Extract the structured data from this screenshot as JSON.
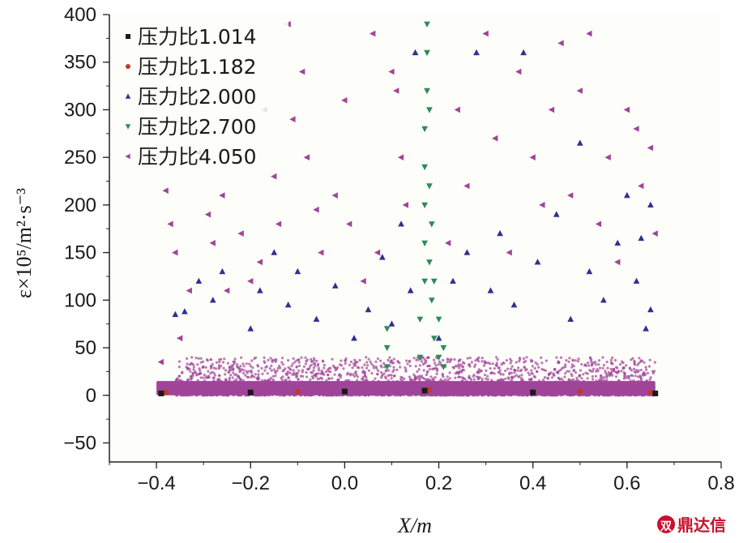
{
  "chart_data": {
    "type": "scatter",
    "xlabel": "X/m",
    "ylabel": "ε×10⁵/m²·s⁻³",
    "xlim": [
      -0.5,
      0.8
    ],
    "ylim": [
      -70,
      400
    ],
    "x_ticks": [
      -0.4,
      -0.2,
      0.0,
      0.2,
      0.4,
      0.6,
      0.8
    ],
    "x_tick_labels": [
      "−0.4",
      "−0.2",
      "0.0",
      "0.2",
      "0.4",
      "0.6",
      "0.8"
    ],
    "y_ticks": [
      -50,
      0,
      50,
      100,
      150,
      200,
      250,
      300,
      350,
      400
    ],
    "y_tick_labels": [
      "−50",
      "0",
      "50",
      "100",
      "150",
      "200",
      "250",
      "300",
      "350",
      "400"
    ],
    "legend_position": "top-left",
    "series": [
      {
        "name": "压力比1.014",
        "marker": "square",
        "color": "#1a1a1a",
        "points": [
          [
            -0.39,
            2
          ],
          [
            -0.2,
            3
          ],
          [
            0.0,
            4
          ],
          [
            0.17,
            5
          ],
          [
            0.4,
            3
          ],
          [
            0.66,
            2
          ]
        ]
      },
      {
        "name": "压力比1.182",
        "marker": "circle",
        "color": "#c0392b",
        "points": [
          [
            -0.38,
            3
          ],
          [
            -0.1,
            4
          ],
          [
            0.18,
            6
          ],
          [
            0.5,
            4
          ],
          [
            0.65,
            3
          ]
        ]
      },
      {
        "name": "压力比2.000",
        "marker": "triangle-up",
        "color": "#2e3192",
        "points": [
          [
            -0.36,
            85
          ],
          [
            -0.34,
            88
          ],
          [
            -0.31,
            120
          ],
          [
            -0.28,
            100
          ],
          [
            -0.26,
            130
          ],
          [
            -0.2,
            70
          ],
          [
            -0.18,
            110
          ],
          [
            -0.15,
            150
          ],
          [
            -0.12,
            95
          ],
          [
            -0.1,
            130
          ],
          [
            -0.06,
            80
          ],
          [
            -0.02,
            115
          ],
          [
            0.02,
            60
          ],
          [
            0.05,
            90
          ],
          [
            0.08,
            145
          ],
          [
            0.1,
            75
          ],
          [
            0.12,
            180
          ],
          [
            0.14,
            110
          ],
          [
            0.15,
            360
          ],
          [
            0.2,
            60
          ],
          [
            0.23,
            120
          ],
          [
            0.26,
            150
          ],
          [
            0.28,
            360
          ],
          [
            0.31,
            110
          ],
          [
            0.33,
            170
          ],
          [
            0.36,
            95
          ],
          [
            0.38,
            360
          ],
          [
            0.41,
            140
          ],
          [
            0.45,
            190
          ],
          [
            0.48,
            80
          ],
          [
            0.5,
            265
          ],
          [
            0.52,
            130
          ],
          [
            0.55,
            100
          ],
          [
            0.58,
            160
          ],
          [
            0.6,
            210
          ],
          [
            0.62,
            120
          ],
          [
            0.63,
            165
          ],
          [
            0.64,
            70
          ],
          [
            0.65,
            200
          ],
          [
            0.65,
            90
          ]
        ]
      },
      {
        "name": "压力比2.700",
        "marker": "triangle-down",
        "color": "#2e8b57",
        "points": [
          [
            0.09,
            30
          ],
          [
            0.09,
            50
          ],
          [
            0.09,
            70
          ],
          [
            0.16,
            40
          ],
          [
            0.16,
            80
          ],
          [
            0.17,
            120
          ],
          [
            0.17,
            160
          ],
          [
            0.17,
            200
          ],
          [
            0.17,
            240
          ],
          [
            0.17,
            280
          ],
          [
            0.175,
            320
          ],
          [
            0.175,
            360
          ],
          [
            0.175,
            390
          ],
          [
            0.18,
            140
          ],
          [
            0.18,
            220
          ],
          [
            0.18,
            300
          ],
          [
            0.185,
            100
          ],
          [
            0.185,
            180
          ],
          [
            0.19,
            60
          ],
          [
            0.19,
            120
          ],
          [
            0.2,
            40
          ],
          [
            0.2,
            80
          ],
          [
            0.21,
            30
          ],
          [
            0.21,
            50
          ]
        ]
      },
      {
        "name": "压力比4.050",
        "marker": "triangle-left",
        "color": "#a0449a",
        "points": [
          [
            -0.39,
            35
          ],
          [
            -0.38,
            215
          ],
          [
            -0.37,
            180
          ],
          [
            -0.36,
            150
          ],
          [
            -0.35,
            60
          ],
          [
            -0.33,
            110
          ],
          [
            -0.31,
            255
          ],
          [
            -0.29,
            190
          ],
          [
            -0.28,
            160
          ],
          [
            -0.26,
            210
          ],
          [
            -0.25,
            110
          ],
          [
            -0.22,
            170
          ],
          [
            -0.2,
            120
          ],
          [
            -0.18,
            140
          ],
          [
            -0.17,
            300
          ],
          [
            -0.15,
            230
          ],
          [
            -0.14,
            180
          ],
          [
            -0.12,
            390
          ],
          [
            -0.11,
            290
          ],
          [
            -0.09,
            340
          ],
          [
            -0.08,
            250
          ],
          [
            -0.06,
            195
          ],
          [
            -0.05,
            150
          ],
          [
            -0.02,
            210
          ],
          [
            0.0,
            310
          ],
          [
            0.01,
            180
          ],
          [
            0.04,
            120
          ],
          [
            0.06,
            380
          ],
          [
            0.07,
            150
          ],
          [
            0.1,
            340
          ],
          [
            0.11,
            320
          ],
          [
            0.12,
            250
          ],
          [
            0.13,
            200
          ],
          [
            0.22,
            160
          ],
          [
            0.24,
            300
          ],
          [
            0.26,
            220
          ],
          [
            0.3,
            380
          ],
          [
            0.32,
            270
          ],
          [
            0.35,
            150
          ],
          [
            0.37,
            340
          ],
          [
            0.4,
            250
          ],
          [
            0.42,
            200
          ],
          [
            0.44,
            300
          ],
          [
            0.46,
            370
          ],
          [
            0.48,
            210
          ],
          [
            0.5,
            320
          ],
          [
            0.52,
            380
          ],
          [
            0.54,
            180
          ],
          [
            0.56,
            250
          ],
          [
            0.58,
            140
          ],
          [
            0.6,
            300
          ],
          [
            0.62,
            280
          ],
          [
            0.63,
            220
          ],
          [
            0.65,
            260
          ],
          [
            0.66,
            170
          ]
        ]
      }
    ],
    "baseline_band": {
      "x": [
        -0.4,
        0.66
      ],
      "y": [
        0,
        15
      ],
      "color": "#a0449a"
    },
    "dense_cloud_band": {
      "x": [
        -0.36,
        0.66
      ],
      "y": [
        0,
        40
      ],
      "color": "#a0449a"
    }
  },
  "watermark": {
    "text": "鼎达信",
    "glyph": "双"
  }
}
